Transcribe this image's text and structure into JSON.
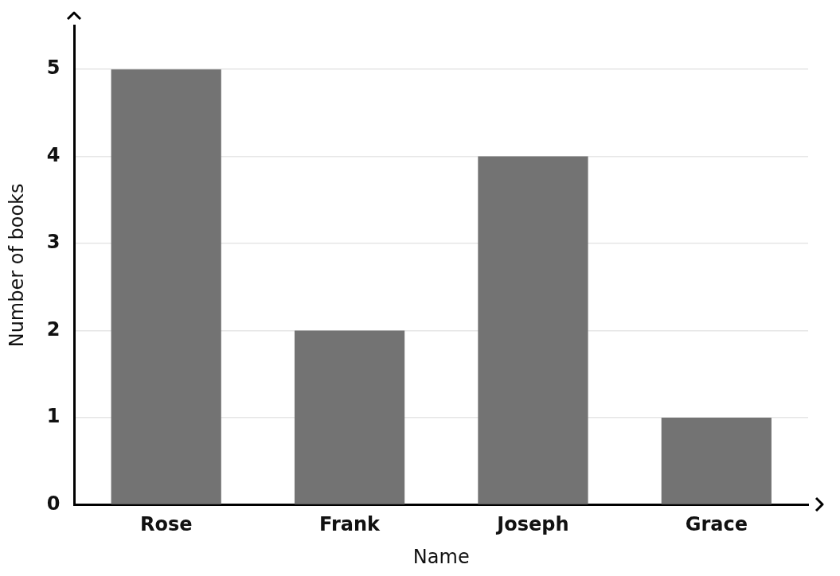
{
  "chart_data": {
    "type": "bar",
    "xlabel": "Name",
    "ylabel": "Number of books",
    "categories": [
      "Rose",
      "Frank",
      "Joseph",
      "Grace"
    ],
    "values": [
      5,
      2,
      4,
      1
    ],
    "color": "#737373",
    "ylim": [
      0,
      5.5
    ],
    "yticks": [
      0,
      1,
      2,
      3,
      4,
      5
    ],
    "grid": "y",
    "legend": false
  }
}
